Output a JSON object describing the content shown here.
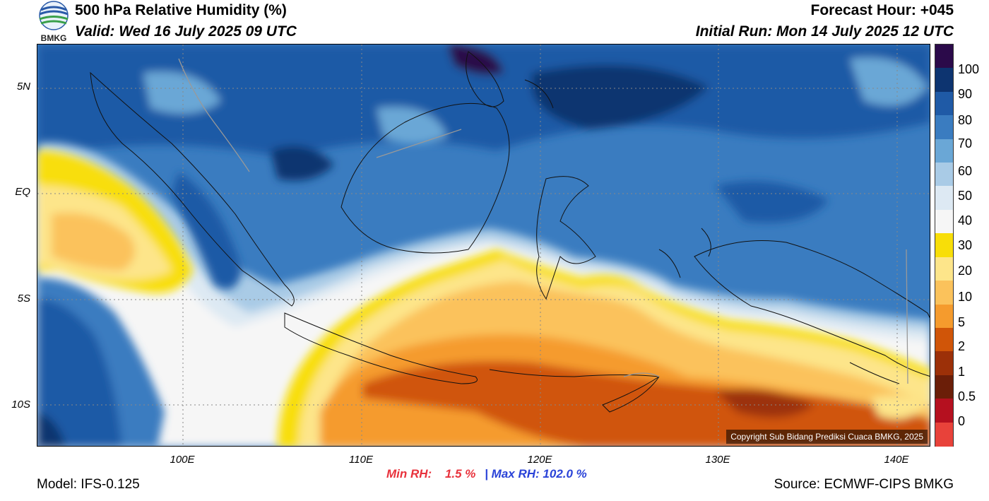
{
  "header": {
    "title": "500 hPa Relative Humidity (%)",
    "valid": "Valid: Wed 16 July 2025 09 UTC",
    "forecast_hour": "Forecast Hour: +045",
    "initial_run": "Initial Run: Mon 14 July 2025 12 UTC",
    "logo_text": "BMKG"
  },
  "map": {
    "lat_labels": [
      "5N",
      "EQ",
      "5S",
      "10S"
    ],
    "lon_labels": [
      "100E",
      "110E",
      "120E",
      "130E",
      "140E"
    ],
    "copyright": "Copyright Sub Bidang Prediksi Cuaca BMKG, 2025"
  },
  "colorbar": {
    "labels": [
      "100",
      "90",
      "80",
      "70",
      "60",
      "50",
      "40",
      "30",
      "20",
      "10",
      "5",
      "2",
      "1",
      "0.5",
      "0"
    ],
    "colors": [
      "#2b0a4a",
      "#0d3470",
      "#1f5aa6",
      "#3a7cc0",
      "#6aa7d6",
      "#a9cbe6",
      "#dde9f3",
      "#f6f6f6",
      "#f8de08",
      "#fde58a",
      "#fbc25b",
      "#f59b2d",
      "#d05508",
      "#9c3008",
      "#6b1e08",
      "#b5101f",
      "#e8423a"
    ]
  },
  "stats": {
    "min_label": "Min RH:",
    "min_value": "1.5 %",
    "separator": "|",
    "max_text": "Max RH: 102.0 %"
  },
  "footer": {
    "model": "Model: IFS-0.125",
    "source": "Source: ECMWF-CIPS BMKG"
  }
}
